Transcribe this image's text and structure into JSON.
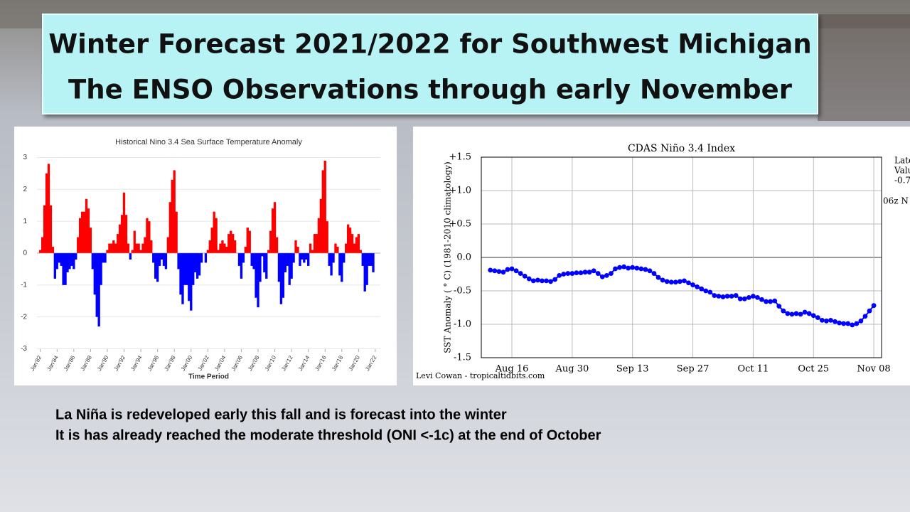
{
  "slide": {
    "title": [
      "Winter Forecast 2021/2022 for Southwest Michigan",
      "The ENSO Observations through early November"
    ],
    "notes": [
      "La Niña is  redeveloped early this fall and is forecast into the winter",
      "It is has already reached the moderate threshold (ONI <-1c) at the end of October"
    ]
  },
  "chart_data": [
    {
      "type": "signed_area",
      "title": "Historical Nino 3.4 Sea Surface Temperature Anomaly",
      "x_label": "Time Period",
      "positive_color": "#ff0000",
      "negative_color": "#0000ff",
      "grid": true,
      "xlim": [
        1981.6,
        2022.6
      ],
      "ylim": [
        -3.1,
        3.3
      ],
      "yticks": [
        -3,
        -2,
        -1,
        0,
        1,
        2,
        3
      ],
      "xticks": [
        {
          "value": 1982,
          "label": "Jan'82"
        },
        {
          "value": 1984,
          "label": "Jan'84"
        },
        {
          "value": 1986,
          "label": "Jan'86"
        },
        {
          "value": 1988,
          "label": "Jan'88"
        },
        {
          "value": 1990,
          "label": "Jan'90"
        },
        {
          "value": 1992,
          "label": "Jan'92"
        },
        {
          "value": 1994,
          "label": "Jan'94"
        },
        {
          "value": 1996,
          "label": "Jan'96"
        },
        {
          "value": 1998,
          "label": "Jan'98"
        },
        {
          "value": 2000,
          "label": "Jan'00"
        },
        {
          "value": 2002,
          "label": "Jan'02"
        },
        {
          "value": 2004,
          "label": "Jan'04"
        },
        {
          "value": 2006,
          "label": "Jan'06"
        },
        {
          "value": 2008,
          "label": "Jan'08"
        },
        {
          "value": 2010,
          "label": "Jan'10"
        },
        {
          "value": 2012,
          "label": "Jan'12"
        },
        {
          "value": 2014,
          "label": "Jan'14"
        },
        {
          "value": 2016,
          "label": "Jan'16"
        },
        {
          "value": 2018,
          "label": "Jan'18"
        },
        {
          "value": 2020,
          "label": "Jan'20"
        },
        {
          "value": 2022,
          "label": "Jan'22"
        }
      ],
      "x": [
        1982,
        1982.25,
        1982.5,
        1982.75,
        1983,
        1983.25,
        1983.5,
        1983.75,
        1984,
        1984.25,
        1984.5,
        1984.75,
        1985,
        1985.25,
        1985.5,
        1985.75,
        1986,
        1986.25,
        1986.5,
        1986.75,
        1987,
        1987.25,
        1987.5,
        1987.75,
        1988,
        1988.25,
        1988.5,
        1988.75,
        1989,
        1989.25,
        1989.5,
        1989.75,
        1990,
        1990.25,
        1990.5,
        1990.75,
        1991,
        1991.25,
        1991.5,
        1991.75,
        1992,
        1992.25,
        1992.5,
        1992.75,
        1993,
        1993.25,
        1993.5,
        1993.75,
        1994,
        1994.25,
        1994.5,
        1994.75,
        1995,
        1995.25,
        1995.5,
        1995.75,
        1996,
        1996.25,
        1996.5,
        1996.75,
        1997,
        1997.25,
        1997.5,
        1997.75,
        1998,
        1998.25,
        1998.5,
        1998.75,
        1999,
        1999.25,
        1999.5,
        1999.75,
        2000,
        2000.25,
        2000.5,
        2000.75,
        2001,
        2001.25,
        2001.5,
        2001.75,
        2002,
        2002.25,
        2002.5,
        2002.75,
        2003,
        2003.25,
        2003.5,
        2003.75,
        2004,
        2004.25,
        2004.5,
        2004.75,
        2005,
        2005.25,
        2005.5,
        2005.75,
        2006,
        2006.25,
        2006.5,
        2006.75,
        2007,
        2007.25,
        2007.5,
        2007.75,
        2008,
        2008.25,
        2008.5,
        2008.75,
        2009,
        2009.25,
        2009.5,
        2009.75,
        2010,
        2010.25,
        2010.5,
        2010.75,
        2011,
        2011.25,
        2011.5,
        2011.75,
        2012,
        2012.25,
        2012.5,
        2012.75,
        2013,
        2013.25,
        2013.5,
        2013.75,
        2014,
        2014.25,
        2014.5,
        2014.75,
        2015,
        2015.25,
        2015.5,
        2015.75,
        2016,
        2016.25,
        2016.5,
        2016.75,
        2017,
        2017.25,
        2017.5,
        2017.75,
        2018,
        2018.25,
        2018.5,
        2018.75,
        2019,
        2019.25,
        2019.5,
        2019.75,
        2020,
        2020.25,
        2020.5,
        2020.75,
        2021,
        2021.25,
        2021.5,
        2021.75
      ],
      "values": [
        0.1,
        0.5,
        1.5,
        2.5,
        2.8,
        1.5,
        0.2,
        -0.8,
        -0.5,
        -0.3,
        -0.4,
        -1.0,
        -1.0,
        -0.6,
        -0.5,
        -0.4,
        -0.5,
        -0.2,
        0.5,
        1.1,
        1.3,
        1.3,
        1.7,
        1.4,
        0.8,
        -0.5,
        -1.3,
        -2.0,
        -2.3,
        -1.0,
        -0.3,
        -0.3,
        0.1,
        0.3,
        0.3,
        0.4,
        0.3,
        0.6,
        0.9,
        1.2,
        1.9,
        1.2,
        0.3,
        -0.2,
        0.1,
        0.7,
        0.3,
        0.3,
        0.1,
        0.3,
        0.5,
        1.1,
        1.0,
        0.4,
        -0.3,
        -0.8,
        -0.9,
        -0.4,
        -0.2,
        -0.4,
        -0.5,
        0.5,
        1.6,
        2.3,
        2.6,
        1.3,
        -0.5,
        -1.3,
        -1.6,
        -1.0,
        -1.0,
        -1.5,
        -1.8,
        -1.0,
        -0.6,
        -0.8,
        -0.7,
        -0.3,
        0.0,
        -0.3,
        0.1,
        0.4,
        0.8,
        1.3,
        1.1,
        0.1,
        0.3,
        0.4,
        0.3,
        0.2,
        0.6,
        0.7,
        0.6,
        0.4,
        0.0,
        -0.4,
        -0.8,
        -0.3,
        0.2,
        0.8,
        0.7,
        -0.4,
        -0.5,
        -1.4,
        -1.7,
        -0.9,
        -0.1,
        -0.6,
        -0.8,
        0.1,
        0.7,
        1.4,
        1.6,
        0.5,
        -0.9,
        -1.6,
        -1.4,
        -0.6,
        -0.4,
        -1.0,
        -0.8,
        -0.3,
        0.4,
        0.2,
        -0.4,
        -0.2,
        -0.3,
        -0.2,
        -0.4,
        0.3,
        0.1,
        0.6,
        0.6,
        1.1,
        1.7,
        2.6,
        2.9,
        1.0,
        -0.4,
        -0.7,
        -0.3,
        0.3,
        0.2,
        -0.7,
        -0.9,
        -0.3,
        0.3,
        0.9,
        0.8,
        0.6,
        0.3,
        0.5,
        0.6,
        0.1,
        -0.4,
        -1.2,
        -1.0,
        -0.4,
        -0.4,
        -0.6
      ]
    },
    {
      "type": "line",
      "title": "CDAS Niño 3.4 Index",
      "y_label": "SST Anomaly ( ° C) (1981-2010 climatology)",
      "credit": "Levi Cowan - tropicaltidbits.com",
      "annotations": [
        "Late",
        "Valu",
        "-0.7",
        "06z N"
      ],
      "color": "#0000ff",
      "grid": true,
      "ylim": [
        -1.5,
        1.5
      ],
      "yticks": [
        {
          "value": 1.5,
          "label": "+1.5"
        },
        {
          "value": 1.0,
          "label": "+1.0"
        },
        {
          "value": 0.5,
          "label": "+0.5"
        },
        {
          "value": 0,
          "label": "0.0"
        },
        {
          "value": -0.5,
          "label": "-0.5"
        },
        {
          "value": -1.0,
          "label": "-1.0"
        },
        {
          "value": -1.5,
          "label": "-1.5"
        }
      ],
      "categories": [
        null,
        null,
        null,
        null,
        null,
        "Aug 16",
        null,
        null,
        null,
        null,
        null,
        null,
        null,
        null,
        null,
        null,
        null,
        null,
        null,
        "Aug 30",
        null,
        null,
        null,
        null,
        null,
        null,
        null,
        null,
        null,
        null,
        null,
        null,
        null,
        "Sep 13",
        null,
        null,
        null,
        null,
        null,
        null,
        null,
        null,
        null,
        null,
        null,
        null,
        null,
        "Sep 27",
        null,
        null,
        null,
        null,
        null,
        null,
        null,
        null,
        null,
        null,
        null,
        null,
        null,
        "Oct 11",
        null,
        null,
        null,
        null,
        null,
        null,
        null,
        null,
        null,
        null,
        null,
        null,
        null,
        "Oct 25",
        null,
        null,
        null,
        null,
        null,
        null,
        null,
        null,
        null,
        null,
        null,
        null,
        null,
        "Nov 08"
      ],
      "values": [
        -0.19,
        -0.2,
        -0.21,
        -0.22,
        -0.18,
        -0.17,
        -0.2,
        -0.24,
        -0.28,
        -0.32,
        -0.35,
        -0.34,
        -0.35,
        -0.35,
        -0.36,
        -0.33,
        -0.27,
        -0.25,
        -0.24,
        -0.24,
        -0.23,
        -0.23,
        -0.22,
        -0.22,
        -0.2,
        -0.24,
        -0.29,
        -0.27,
        -0.24,
        -0.17,
        -0.15,
        -0.14,
        -0.16,
        -0.15,
        -0.16,
        -0.17,
        -0.18,
        -0.2,
        -0.24,
        -0.3,
        -0.34,
        -0.36,
        -0.37,
        -0.37,
        -0.36,
        -0.35,
        -0.38,
        -0.41,
        -0.44,
        -0.47,
        -0.5,
        -0.52,
        -0.57,
        -0.58,
        -0.59,
        -0.58,
        -0.58,
        -0.57,
        -0.62,
        -0.62,
        -0.6,
        -0.58,
        -0.6,
        -0.63,
        -0.66,
        -0.66,
        -0.65,
        -0.73,
        -0.8,
        -0.84,
        -0.85,
        -0.84,
        -0.85,
        -0.82,
        -0.84,
        -0.87,
        -0.9,
        -0.94,
        -0.95,
        -0.94,
        -0.96,
        -0.98,
        -0.99,
        -0.99,
        -1.01,
        -0.99,
        -0.95,
        -0.88,
        -0.8,
        -0.72
      ]
    }
  ]
}
